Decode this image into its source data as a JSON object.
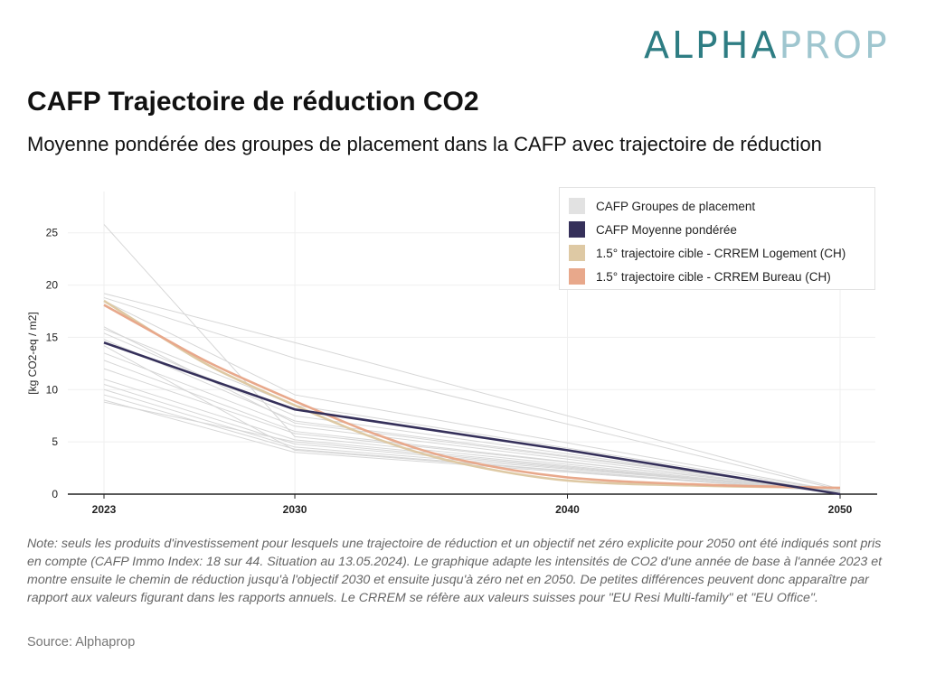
{
  "logo": {
    "part1": "ALPHA",
    "part2": "PROP",
    "color1": "#2e7d83",
    "color2": "#9fc6cf"
  },
  "title": "CAFP Trajectoire de réduction CO2",
  "subtitle": "Moyenne pondérée des groupes de placement dans la CAFP avec trajectoire de réduction",
  "note": "Note: seuls les produits d'investissement pour lesquels une trajectoire de réduction et un objectif net zéro explicite pour 2050 ont été indiqués sont pris en compte (CAFP Immo Index: 18 sur 44. Situation au 13.05.2024). Le graphique adapte les intensités de CO2 d'une année de base à l'année 2023 et montre ensuite le chemin de réduction jusqu'à l'objectif 2030 et ensuite jusqu'à zéro net en 2050. De petites différences peuvent donc apparaître par rapport aux valeurs figurant dans les rapports annuels. Le CRREM se réfère aux valeurs suisses pour \"EU Resi Multi-family\" et \"EU Office\".",
  "source": "Source: Alphaprop",
  "chart_data": {
    "type": "line",
    "ylabel": "[kg CO2-eq / m2]",
    "xlabel": "",
    "xlim": [
      2023,
      2050
    ],
    "ylim": [
      0,
      28
    ],
    "x_ticks": [
      2023,
      2030,
      2040,
      2050
    ],
    "y_ticks": [
      0,
      5,
      10,
      15,
      20,
      25
    ],
    "grid": true,
    "legend_position": "top-right",
    "legend": [
      {
        "label": "CAFP Groupes de placement",
        "color": "#e2e2e2"
      },
      {
        "label": "CAFP Moyenne pondérée",
        "color": "#35305a"
      },
      {
        "label": "1.5° trajectoire cible - CRREM Logement (CH)",
        "color": "#dec9a4"
      },
      {
        "label": "1.5° trajectoire cible - CRREM Bureau (CH)",
        "color": "#e8a88b"
      }
    ],
    "group_series": [
      {
        "x": [
          2023,
          2030,
          2050
        ],
        "y": [
          25.8,
          5.5,
          0.2
        ]
      },
      {
        "x": [
          2023,
          2030,
          2050
        ],
        "y": [
          19.2,
          14.5,
          0.5
        ]
      },
      {
        "x": [
          2023,
          2030,
          2050
        ],
        "y": [
          18.8,
          13.0,
          0.4
        ]
      },
      {
        "x": [
          2023,
          2030,
          2050
        ],
        "y": [
          18.5,
          9.5,
          0.3
        ]
      },
      {
        "x": [
          2023,
          2030,
          2050
        ],
        "y": [
          15.8,
          8.5,
          0.3
        ]
      },
      {
        "x": [
          2023,
          2030,
          2050
        ],
        "y": [
          15.4,
          7.5,
          0.2
        ]
      },
      {
        "x": [
          2023,
          2030,
          2050
        ],
        "y": [
          14.8,
          7.0,
          0.3
        ]
      },
      {
        "x": [
          2023,
          2030,
          2050
        ],
        "y": [
          13.5,
          6.5,
          0.2
        ]
      },
      {
        "x": [
          2023,
          2030,
          2050
        ],
        "y": [
          12.8,
          6.0,
          0.2
        ]
      },
      {
        "x": [
          2023,
          2030,
          2050
        ],
        "y": [
          12.0,
          5.8,
          0.3
        ]
      },
      {
        "x": [
          2023,
          2030,
          2050
        ],
        "y": [
          11.0,
          5.2,
          0.2
        ]
      },
      {
        "x": [
          2023,
          2030,
          2050
        ],
        "y": [
          10.5,
          4.8,
          0.2
        ]
      },
      {
        "x": [
          2023,
          2030,
          2050
        ],
        "y": [
          10.0,
          4.5,
          0.3
        ]
      },
      {
        "x": [
          2023,
          2030,
          2050
        ],
        "y": [
          9.5,
          4.3,
          0.2
        ]
      },
      {
        "x": [
          2023,
          2030,
          2050
        ],
        "y": [
          9.0,
          4.0,
          0.2
        ]
      },
      {
        "x": [
          2023,
          2030,
          2050
        ],
        "y": [
          8.8,
          5.0,
          0.2
        ]
      },
      {
        "x": [
          2023,
          2030,
          2050
        ],
        "y": [
          16.0,
          6.8,
          0.3
        ]
      },
      {
        "x": [
          2023,
          2030,
          2050
        ],
        "y": [
          14.2,
          4.2,
          0.2
        ]
      }
    ],
    "series": [
      {
        "name": "CAFP Moyenne pondérée",
        "color": "#35305a",
        "x": [
          2023,
          2030,
          2040,
          2050
        ],
        "y": [
          14.5,
          8.1,
          4.2,
          0.0
        ]
      },
      {
        "name": "1.5° trajectoire cible - CRREM Logement (CH)",
        "color": "#dec9a4",
        "x": [
          2023,
          2025,
          2027,
          2030,
          2033,
          2036,
          2040,
          2045,
          2050
        ],
        "y": [
          18.5,
          15.2,
          12.1,
          8.5,
          5.3,
          3.0,
          1.3,
          0.8,
          0.6
        ]
      },
      {
        "name": "1.5° trajectoire cible - CRREM Bureau (CH)",
        "color": "#e8a88b",
        "x": [
          2023,
          2025,
          2027,
          2030,
          2033,
          2036,
          2040,
          2045,
          2050
        ],
        "y": [
          18.1,
          15.2,
          12.4,
          8.9,
          5.7,
          3.3,
          1.6,
          0.9,
          0.6
        ]
      }
    ]
  }
}
